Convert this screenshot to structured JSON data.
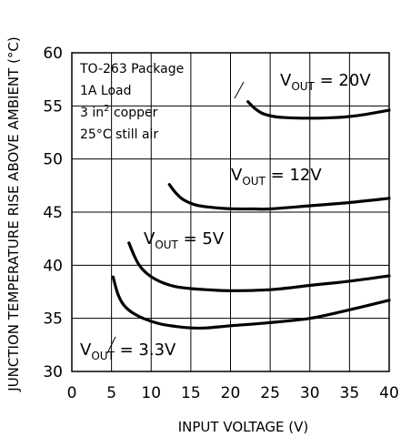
{
  "chart_data": {
    "type": "line",
    "title": "",
    "xlabel": "INPUT VOLTAGE (V)",
    "ylabel": "JUNCTION TEMPERATURE RISE ABOVE AMBIENT (°C)",
    "xlim": [
      0,
      40
    ],
    "ylim": [
      30,
      60
    ],
    "x_ticks": [
      0,
      5,
      10,
      15,
      20,
      25,
      30,
      35,
      40
    ],
    "y_ticks": [
      30,
      35,
      40,
      45,
      50,
      55,
      60
    ],
    "x_tick_labels": [
      "0",
      "5",
      "10",
      "15",
      "20",
      "25",
      "30",
      "35",
      "40"
    ],
    "y_tick_labels": [
      "30",
      "35",
      "40",
      "45",
      "50",
      "55",
      "60"
    ],
    "grid": true,
    "conditions": [
      "TO-263 Package",
      "1A Load",
      "3 in",
      "2",
      " copper",
      "25°C still air"
    ],
    "series": [
      {
        "name": "V",
        "sub": "OUT",
        "value_label": " = 3.3V",
        "x": [
          5.2,
          5.8,
          6.5,
          7.5,
          9,
          11,
          13,
          15,
          17,
          20,
          25,
          30,
          35,
          40
        ],
        "y": [
          38.9,
          37.3,
          36.3,
          35.6,
          35.0,
          34.5,
          34.25,
          34.1,
          34.1,
          34.3,
          34.6,
          35.0,
          35.8,
          36.7
        ]
      },
      {
        "name": "V",
        "sub": "OUT",
        "value_label": " = 5V",
        "x": [
          7.2,
          7.8,
          8.5,
          9.5,
          11,
          13,
          15,
          17,
          20,
          25,
          30,
          35,
          40
        ],
        "y": [
          42.1,
          41.0,
          40.0,
          39.2,
          38.5,
          38.0,
          37.8,
          37.7,
          37.6,
          37.7,
          38.1,
          38.5,
          39.0
        ]
      },
      {
        "name": "V",
        "sub": "OUT",
        "value_label": " = 12V",
        "x": [
          12.3,
          13,
          14,
          15.5,
          17,
          19,
          21,
          23,
          25,
          30,
          35,
          40
        ],
        "y": [
          47.6,
          46.9,
          46.2,
          45.7,
          45.5,
          45.35,
          45.3,
          45.3,
          45.3,
          45.6,
          45.9,
          46.3
        ]
      },
      {
        "name": "V",
        "sub": "OUT",
        "value_label": " = 20V",
        "x": [
          22.2,
          23,
          24,
          25.5,
          27,
          29,
          31,
          33,
          35,
          37,
          40
        ],
        "y": [
          55.4,
          54.8,
          54.3,
          54.0,
          53.9,
          53.85,
          53.85,
          53.9,
          54.0,
          54.2,
          54.6
        ]
      }
    ]
  }
}
